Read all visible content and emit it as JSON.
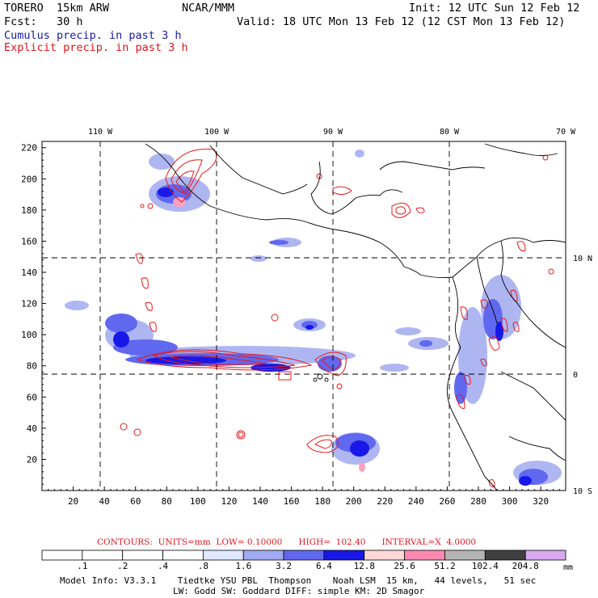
{
  "header": {
    "model": "TORERO  15km ARW",
    "org": "NCAR/MMM",
    "init": "Init: 12 UTC Sun 12 Feb 12",
    "fcst": "Fcst:   30 h",
    "valid": "Valid: 18 UTC Mon 13 Feb 12 (12 CST Mon 13 Feb 12)",
    "legend_cumulus": "Cumulus precip. in past 3 h",
    "legend_explicit": "Explicit precip. in past 3 h"
  },
  "map": {
    "top_lon_labels": [
      "110 W",
      "100 W",
      "90 W",
      "80 W",
      "70 W"
    ],
    "right_lat_labels": [
      "10 N",
      "0",
      "10 S"
    ],
    "x_ticks": [
      "20",
      "40",
      "60",
      "80",
      "100",
      "120",
      "140",
      "160",
      "180",
      "200",
      "220",
      "240",
      "260",
      "280",
      "300",
      "320"
    ],
    "y_ticks": [
      "20",
      "40",
      "60",
      "80",
      "100",
      "120",
      "140",
      "160",
      "180",
      "200",
      "220"
    ],
    "grid": "dashed lat/lon every 10 degrees"
  },
  "contours_info": {
    "label": "CONTOURS:",
    "units": "UNITS=mm",
    "low": "LOW= 0.10000",
    "high": "HIGH=  102.40",
    "interval": "INTERVAL=X  4.0000"
  },
  "colorbar": {
    "units": "mm",
    "labels": [
      ".1",
      ".2",
      ".4",
      ".8",
      "1.6",
      "3.2",
      "6.4",
      "12.8",
      "25.6",
      "51.2",
      "102.4",
      "204.8"
    ],
    "colors": [
      "#ffffff",
      "#ffffff",
      "#ffffff",
      "#ffffff",
      "#dfe8ff",
      "#a0aaf0",
      "#6068f0",
      "#1818e8",
      "#ffd8d8",
      "#ff88b0",
      "#b4b4b4",
      "#404040",
      "#d8a8f0"
    ]
  },
  "model_info": {
    "line1": "Model Info: V3.3.1    Tiedtke YSU PBL  Thompson    Noah LSM  15 km,   44 levels,   51 sec",
    "line2": "LW: Godd SW: Goddard DIFF: simple KM: 2D Smagor"
  }
}
